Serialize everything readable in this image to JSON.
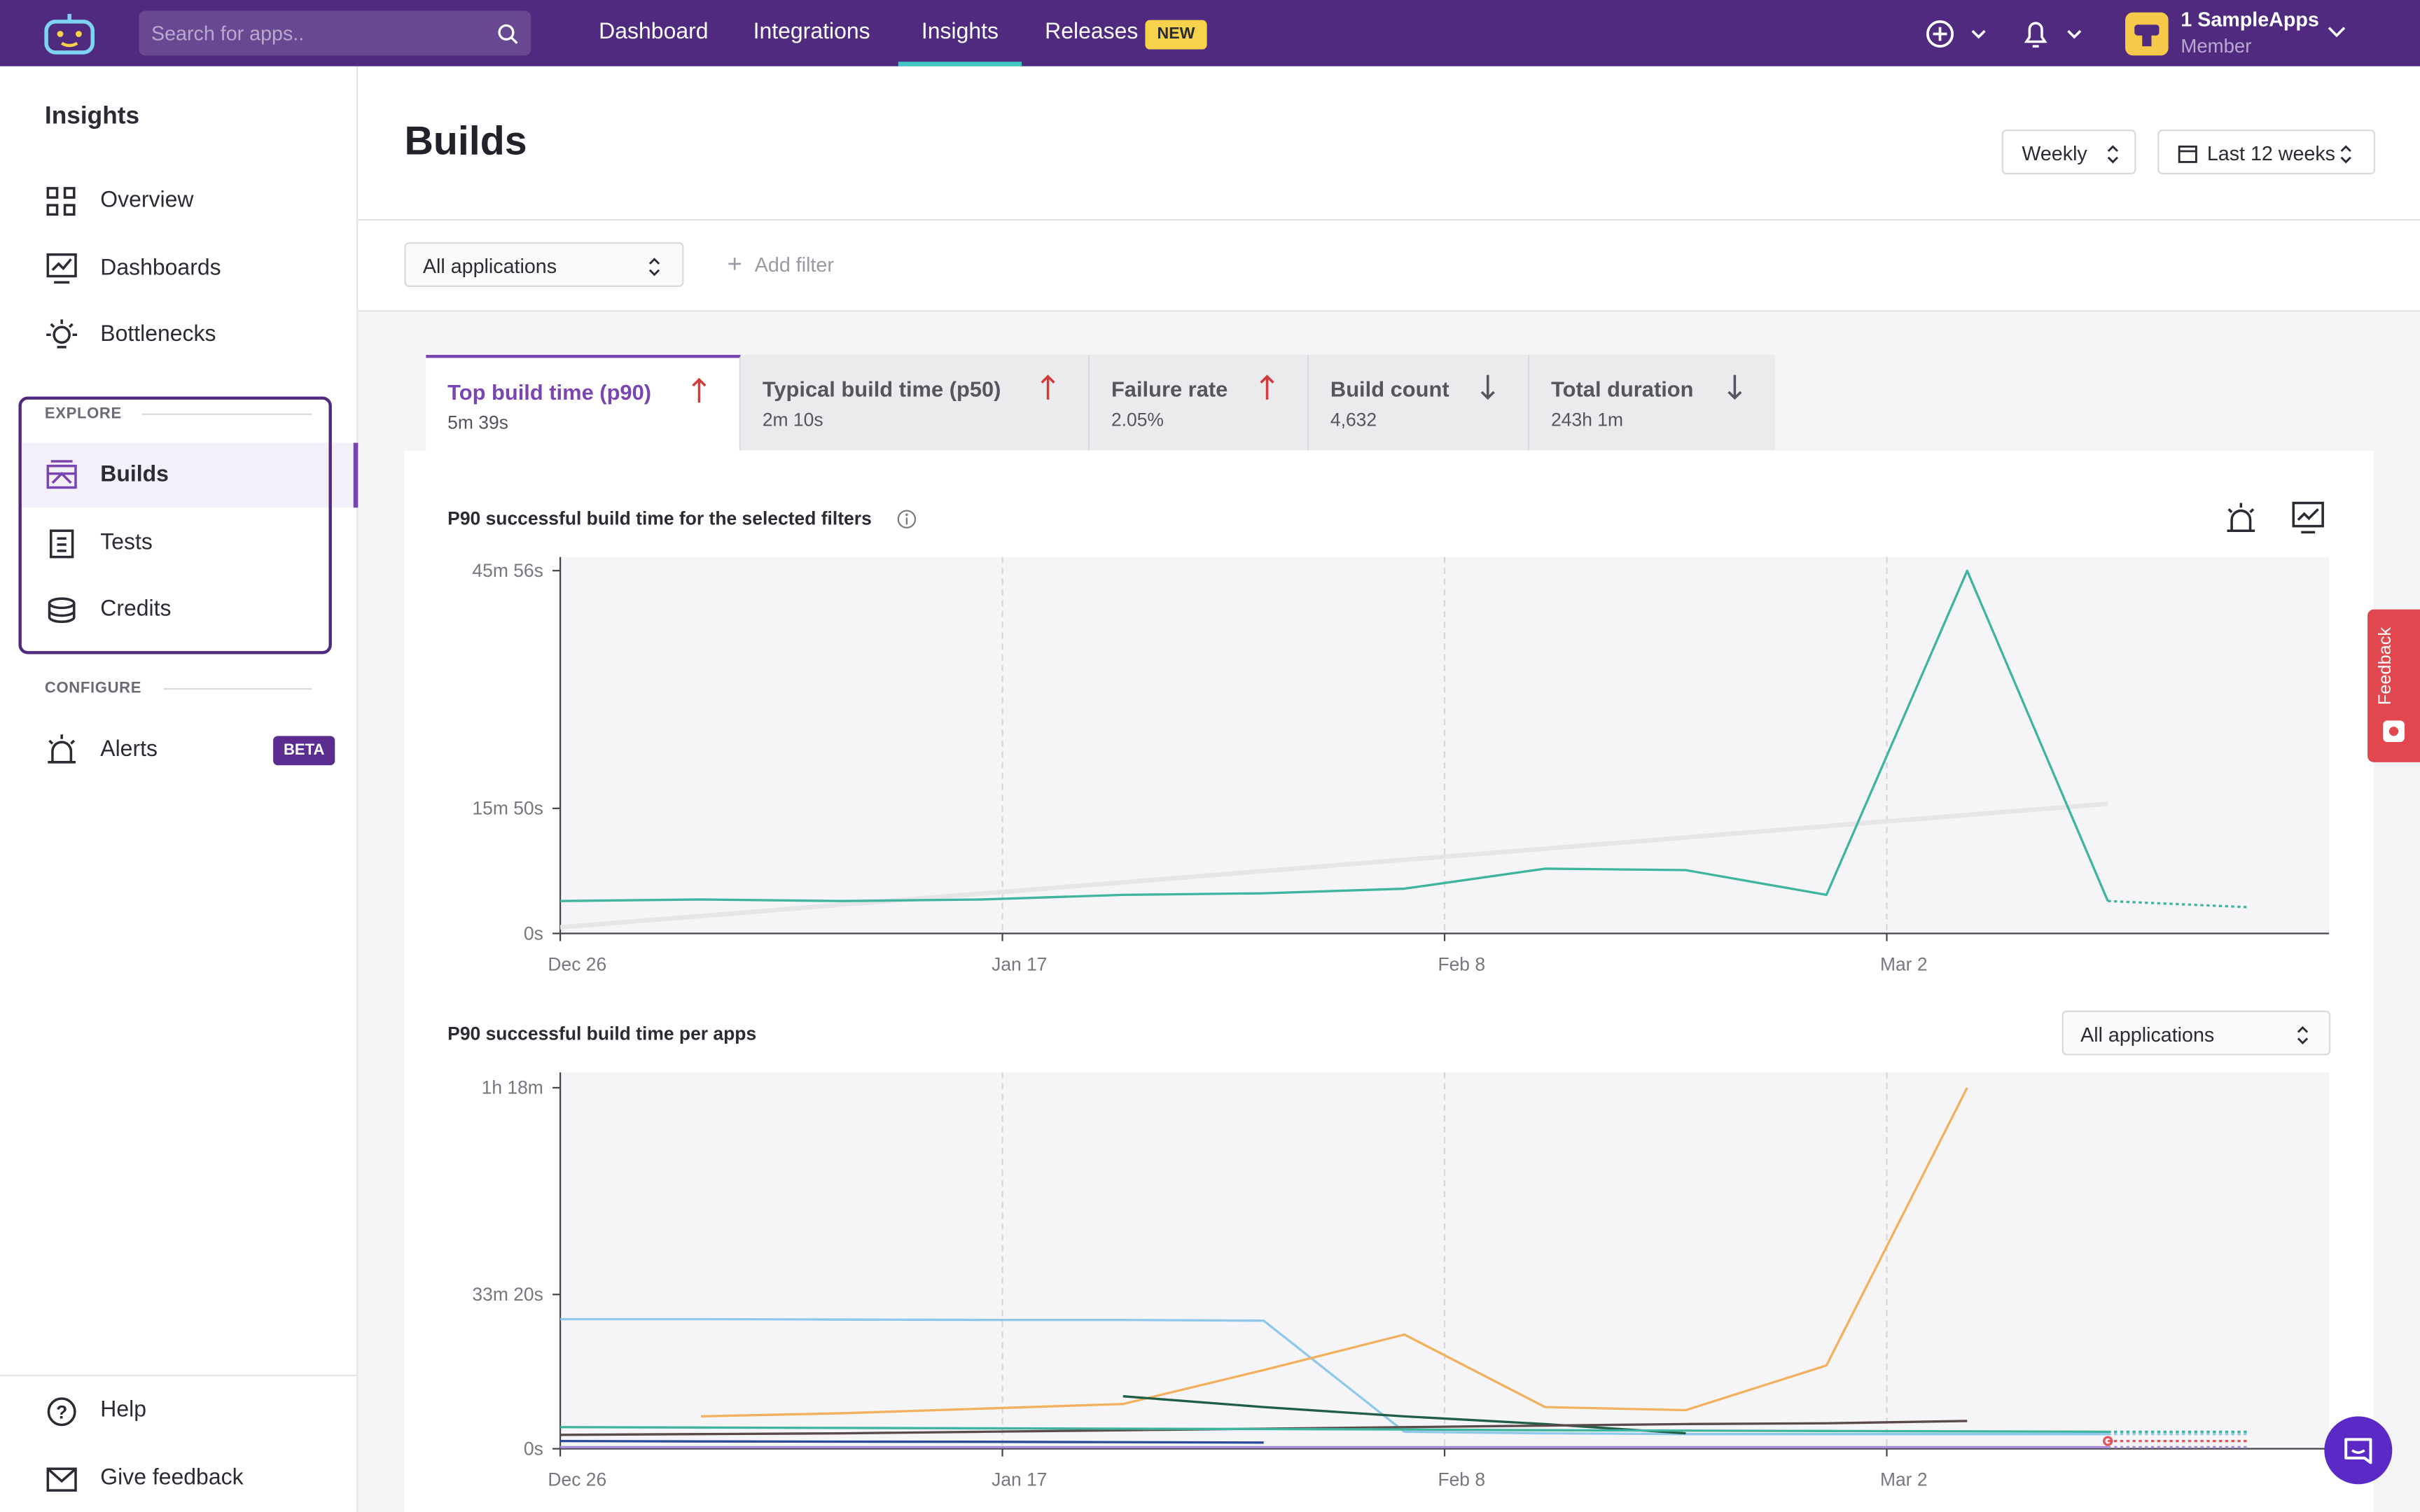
{
  "nav": {
    "search_placeholder": "Search for apps..",
    "items": [
      "Dashboard",
      "Integrations",
      "Insights",
      "Releases"
    ],
    "badge": "NEW",
    "user": {
      "name": "1 SampleApps",
      "role": "Member"
    }
  },
  "sidebar": {
    "title": "Insights",
    "items": [
      "Overview",
      "Dashboards",
      "Bottlenecks"
    ],
    "explore": {
      "label": "EXPLORE",
      "items": [
        "Builds",
        "Tests",
        "Credits"
      ]
    },
    "configure": {
      "label": "CONFIGURE",
      "items": [
        {
          "label": "Alerts",
          "badge": "BETA"
        }
      ]
    },
    "footer": [
      "Help",
      "Give feedback"
    ]
  },
  "header": {
    "title": "Builds",
    "interval": "Weekly",
    "range": "Last 12 weeks"
  },
  "filters": {
    "app_select": "All applications",
    "add": "Add filter"
  },
  "tabs": [
    {
      "title": "Top build time (p90)",
      "value": "5m 39s"
    },
    {
      "title": "Typical build time (p50)",
      "value": "2m 10s"
    },
    {
      "title": "Failure rate",
      "value": "2.05%"
    },
    {
      "title": "Build count",
      "value": "4,632"
    },
    {
      "title": "Total duration",
      "value": "243h 1m"
    }
  ],
  "chart_data": [
    {
      "type": "line",
      "title": "P90 successful build time for the selected filters",
      "x": [
        "Dec 26",
        "Jan 2",
        "Jan 9",
        "Jan 16",
        "Jan 23",
        "Jan 30",
        "Feb 6",
        "Feb 13",
        "Feb 20",
        "Feb 27",
        "Mar 6",
        "Mar 13",
        "Mar 20"
      ],
      "xlim": [
        "Dec 26",
        "Mar 24"
      ],
      "xticks": [
        "Dec 26",
        "Jan 17",
        "Feb 8",
        "Mar 2"
      ],
      "ylim": [
        0,
        2860
      ],
      "yticks": [
        {
          "value": 0,
          "label": "0s"
        },
        {
          "value": 950,
          "label": "15m 50s"
        },
        {
          "value": 2756,
          "label": "45m 56s"
        }
      ],
      "series": [
        {
          "color": "#e6e5e8",
          "values": [
            47,
            132,
            218,
            303,
            388,
            474,
            559,
            644,
            729,
            815,
            900,
            985,
            null
          ]
        },
        {
          "color": "#3fb5a0",
          "values": [
            246,
            258,
            246,
            258,
            293,
            305,
            340,
            492,
            481,
            293,
            2755,
            246,
            199
          ]
        }
      ]
    },
    {
      "type": "line",
      "title": "P90 successful build time per apps",
      "select": "All applications",
      "x": [
        "Dec 26",
        "Jan 2",
        "Jan 9",
        "Jan 16",
        "Jan 23",
        "Jan 30",
        "Feb 6",
        "Feb 13",
        "Feb 20",
        "Feb 27",
        "Mar 6",
        "Mar 13",
        "Mar 20"
      ],
      "xlim": [
        "Dec 26",
        "Mar 24"
      ],
      "xticks": [
        "Dec 26",
        "Jan 17",
        "Feb 8",
        "Mar 2"
      ],
      "ylim": [
        0,
        4880
      ],
      "yticks": [
        {
          "value": 0,
          "label": "0s"
        },
        {
          "value": 2000,
          "label": "33m 20s"
        },
        {
          "value": 4680,
          "label": "1h 18m"
        }
      ],
      "series": [
        {
          "color": "#8fc9ea",
          "values": [
            1680,
            1680,
            1675,
            1670,
            1670,
            1660,
            220,
            200,
            190,
            190,
            190,
            190,
            190
          ]
        },
        {
          "color": "#f2b15e",
          "values": [
            null,
            420,
            460,
            520,
            580,
            1020,
            1480,
            540,
            500,
            1080,
            4680,
            null,
            null
          ]
        },
        {
          "color": "#1f5e45",
          "values": [
            null,
            null,
            null,
            null,
            680,
            540,
            420,
            320,
            200,
            null,
            null,
            null,
            null
          ]
        },
        {
          "color": "#5a4a4a",
          "values": [
            180,
            190,
            200,
            220,
            240,
            260,
            280,
            300,
            320,
            330,
            360,
            null,
            null
          ]
        },
        {
          "color": "#3fb5a0",
          "values": [
            280,
            275,
            270,
            265,
            260,
            255,
            250,
            240,
            235,
            230,
            225,
            220,
            220
          ]
        },
        {
          "color": "#2d4a9a",
          "values": [
            100,
            95,
            92,
            90,
            85,
            80,
            null,
            null,
            null,
            null,
            null,
            null,
            null
          ]
        },
        {
          "color": "#a78bd6",
          "values": [
            20,
            20,
            20,
            20,
            20,
            20,
            20,
            20,
            20,
            20,
            20,
            20,
            20
          ]
        },
        {
          "color": "#e0565b",
          "values": [
            null,
            null,
            null,
            null,
            null,
            null,
            null,
            null,
            null,
            null,
            null,
            100,
            100
          ]
        }
      ]
    }
  ],
  "feedback": "Feedback"
}
